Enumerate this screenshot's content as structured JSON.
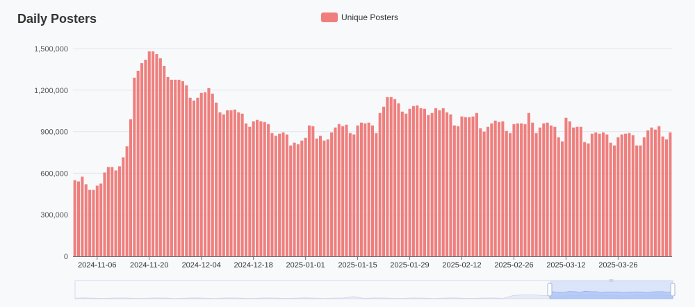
{
  "title": "Daily Posters",
  "legend": {
    "label": "Unique Posters",
    "color": "#ee7f7d"
  },
  "colors": {
    "bar": "#ee7f7d",
    "grid": "#e3e6ee",
    "axis": "#6e7079",
    "zoom_fill": "#c3d3f5",
    "zoom_line": "#8fb0f7"
  },
  "chart_data": {
    "type": "bar",
    "title": "Daily Posters",
    "xlabel": "",
    "ylabel": "",
    "series_name": "Unique Posters",
    "start_date": "2024-10-31",
    "ylim": [
      0,
      1500000
    ],
    "grid": true,
    "legend_position": "top-center",
    "y_ticks": [
      "0",
      "300,000",
      "600,000",
      "900,000",
      "1,200,000",
      "1,500,000"
    ],
    "x_ticks": [
      "2024-11-06",
      "2024-11-20",
      "2024-12-04",
      "2024-12-18",
      "2025-01-01",
      "2025-01-15",
      "2025-01-29",
      "2025-02-12",
      "2025-02-26",
      "2025-03-12",
      "2025-03-26"
    ],
    "values": [
      550000,
      540000,
      575000,
      520000,
      480000,
      480000,
      510000,
      525000,
      605000,
      645000,
      645000,
      620000,
      650000,
      715000,
      795000,
      990000,
      1290000,
      1340000,
      1395000,
      1420000,
      1480000,
      1480000,
      1460000,
      1430000,
      1375000,
      1295000,
      1275000,
      1275000,
      1275000,
      1265000,
      1235000,
      1145000,
      1125000,
      1145000,
      1180000,
      1185000,
      1215000,
      1175000,
      1110000,
      1040000,
      1025000,
      1055000,
      1055000,
      1060000,
      1040000,
      1030000,
      960000,
      935000,
      975000,
      985000,
      975000,
      970000,
      955000,
      890000,
      870000,
      885000,
      895000,
      880000,
      800000,
      820000,
      810000,
      835000,
      855000,
      945000,
      940000,
      850000,
      870000,
      835000,
      845000,
      895000,
      930000,
      955000,
      940000,
      950000,
      890000,
      880000,
      945000,
      965000,
      960000,
      965000,
      945000,
      890000,
      1035000,
      1080000,
      1150000,
      1150000,
      1135000,
      1105000,
      1045000,
      1030000,
      1065000,
      1085000,
      1090000,
      1070000,
      1065000,
      1020000,
      1035000,
      1070000,
      1055000,
      1070000,
      1040000,
      1025000,
      945000,
      940000,
      1010000,
      1005000,
      1005000,
      1010000,
      1035000,
      925000,
      900000,
      935000,
      960000,
      980000,
      970000,
      975000,
      905000,
      890000,
      955000,
      960000,
      960000,
      955000,
      1035000,
      965000,
      890000,
      930000,
      960000,
      965000,
      945000,
      935000,
      860000,
      830000,
      1000000,
      975000,
      930000,
      935000,
      935000,
      825000,
      815000,
      885000,
      895000,
      885000,
      895000,
      880000,
      820000,
      800000,
      860000,
      880000,
      885000,
      890000,
      875000,
      800000,
      800000,
      860000,
      910000,
      930000,
      915000,
      940000,
      865000,
      845000,
      895000
    ]
  }
}
